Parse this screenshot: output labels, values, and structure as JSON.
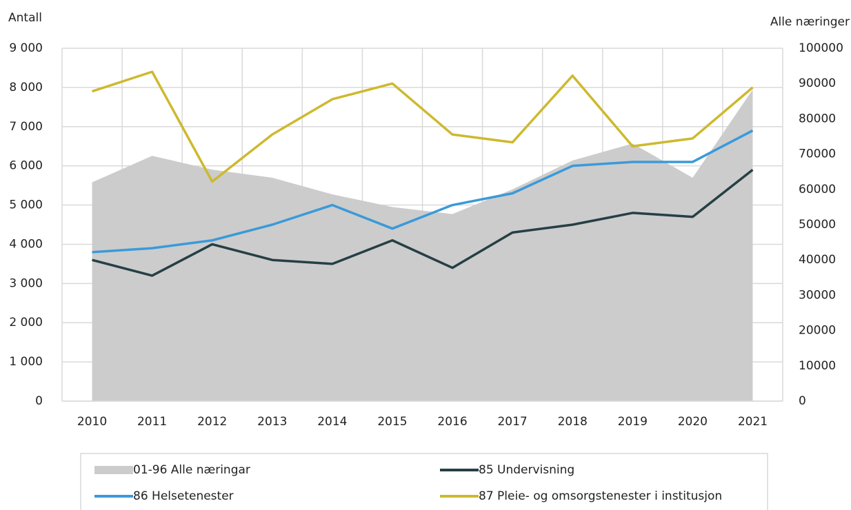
{
  "chart_data": {
    "type": "line",
    "y_label": "Antall",
    "y2_label": "Alle næringer",
    "categories": [
      "2010",
      "2011",
      "2012",
      "2013",
      "2014",
      "2015",
      "2016",
      "2017",
      "2018",
      "2019",
      "2020",
      "2021"
    ],
    "series": [
      {
        "name": "01-96 Alle næringar",
        "color": "#cccccc",
        "kind": "area",
        "axis": "y2",
        "values": [
          62000,
          69500,
          65600,
          63300,
          58600,
          55000,
          53000,
          60000,
          68200,
          73000,
          63300,
          88300
        ]
      },
      {
        "name": "85 Undervisning",
        "color": "#263f45",
        "kind": "line",
        "values": [
          3600,
          3200,
          4000,
          3600,
          3500,
          4100,
          3400,
          4300,
          4500,
          4800,
          4700,
          5900
        ]
      },
      {
        "name": "86 Helsetenester",
        "color": "#3a9ad9",
        "kind": "line",
        "values": [
          3800,
          3900,
          4100,
          4500,
          5000,
          4400,
          5000,
          5300,
          6000,
          6100,
          6100,
          6900
        ]
      },
      {
        "name": "87 Pleie- og omsorgstenester i institusjon",
        "color": "#cdb92e",
        "kind": "line",
        "values": [
          7900,
          8400,
          5600,
          6800,
          7700,
          8100,
          6800,
          6600,
          8300,
          6500,
          6700,
          8000
        ]
      }
    ],
    "ylim": [
      0,
      9000
    ],
    "yticks": [
      0,
      {
        "value": 1000,
        "label": "1 000"
      },
      {
        "value": 2000,
        "label": "2 000"
      },
      {
        "value": 3000,
        "label": "3 000"
      },
      {
        "value": 4000,
        "label": "4 000"
      },
      {
        "value": 5000,
        "label": "5 000"
      },
      {
        "value": 6000,
        "label": "6 000"
      },
      {
        "value": 7000,
        "label": "7 000"
      },
      {
        "value": 8000,
        "label": "8 000"
      },
      {
        "value": 9000,
        "label": "9 000"
      }
    ],
    "y2lim": [
      0,
      100000
    ],
    "y2ticks": [
      0,
      10000,
      20000,
      30000,
      40000,
      50000,
      60000,
      70000,
      80000,
      90000,
      100000
    ],
    "grid": true
  }
}
